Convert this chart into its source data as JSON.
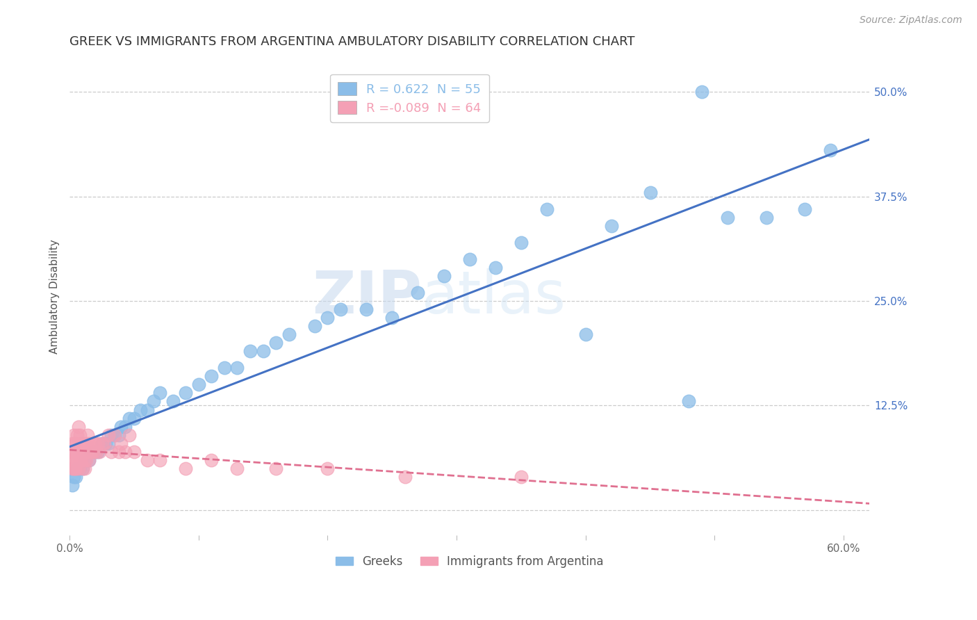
{
  "title": "GREEK VS IMMIGRANTS FROM ARGENTINA AMBULATORY DISABILITY CORRELATION CHART",
  "source": "Source: ZipAtlas.com",
  "ylabel": "Ambulatory Disability",
  "xlim": [
    0.0,
    0.62
  ],
  "ylim": [
    -0.03,
    0.54
  ],
  "xticks": [
    0.0,
    0.1,
    0.2,
    0.3,
    0.4,
    0.5,
    0.6
  ],
  "xticklabels": [
    "0.0%",
    "",
    "",
    "",
    "",
    "",
    "60.0%"
  ],
  "yticks_right": [
    0.0,
    0.125,
    0.25,
    0.375,
    0.5
  ],
  "ytick_right_labels": [
    "",
    "12.5%",
    "25.0%",
    "37.5%",
    "50.0%"
  ],
  "grid_color": "#cccccc",
  "background_color": "#ffffff",
  "greeks": {
    "name": "Greeks",
    "R": 0.622,
    "N": 55,
    "color": "#8bbde8",
    "line_color": "#4472c4",
    "line_style": "solid",
    "x": [
      0.002,
      0.003,
      0.005,
      0.006,
      0.008,
      0.01,
      0.012,
      0.015,
      0.018,
      0.02,
      0.022,
      0.025,
      0.028,
      0.03,
      0.032,
      0.035,
      0.038,
      0.04,
      0.043,
      0.046,
      0.05,
      0.055,
      0.06,
      0.065,
      0.07,
      0.08,
      0.09,
      0.1,
      0.11,
      0.12,
      0.13,
      0.14,
      0.15,
      0.16,
      0.17,
      0.19,
      0.2,
      0.21,
      0.23,
      0.25,
      0.27,
      0.29,
      0.31,
      0.33,
      0.35,
      0.37,
      0.4,
      0.42,
      0.45,
      0.48,
      0.49,
      0.51,
      0.54,
      0.57,
      0.59
    ],
    "y": [
      0.03,
      0.04,
      0.04,
      0.05,
      0.05,
      0.05,
      0.06,
      0.06,
      0.07,
      0.07,
      0.07,
      0.08,
      0.08,
      0.08,
      0.09,
      0.09,
      0.09,
      0.1,
      0.1,
      0.11,
      0.11,
      0.12,
      0.12,
      0.13,
      0.14,
      0.13,
      0.14,
      0.15,
      0.16,
      0.17,
      0.17,
      0.19,
      0.19,
      0.2,
      0.21,
      0.22,
      0.23,
      0.24,
      0.24,
      0.23,
      0.26,
      0.28,
      0.3,
      0.29,
      0.32,
      0.36,
      0.21,
      0.34,
      0.38,
      0.13,
      0.5,
      0.35,
      0.35,
      0.36,
      0.43
    ]
  },
  "argentina": {
    "name": "Immigrants from Argentina",
    "R": -0.089,
    "N": 64,
    "color": "#f4a0b5",
    "line_color": "#e07090",
    "line_style": "dashed",
    "x": [
      0.001,
      0.001,
      0.002,
      0.002,
      0.002,
      0.003,
      0.003,
      0.003,
      0.004,
      0.004,
      0.004,
      0.005,
      0.005,
      0.005,
      0.006,
      0.006,
      0.006,
      0.007,
      0.007,
      0.007,
      0.008,
      0.008,
      0.008,
      0.009,
      0.009,
      0.01,
      0.01,
      0.011,
      0.011,
      0.012,
      0.012,
      0.013,
      0.013,
      0.014,
      0.014,
      0.015,
      0.015,
      0.016,
      0.017,
      0.018,
      0.019,
      0.02,
      0.021,
      0.022,
      0.023,
      0.025,
      0.027,
      0.03,
      0.032,
      0.035,
      0.038,
      0.04,
      0.043,
      0.046,
      0.05,
      0.06,
      0.07,
      0.09,
      0.11,
      0.13,
      0.16,
      0.2,
      0.26,
      0.35
    ],
    "y": [
      0.06,
      0.07,
      0.05,
      0.06,
      0.08,
      0.05,
      0.07,
      0.09,
      0.05,
      0.06,
      0.08,
      0.05,
      0.07,
      0.08,
      0.06,
      0.07,
      0.09,
      0.05,
      0.07,
      0.1,
      0.06,
      0.07,
      0.09,
      0.06,
      0.08,
      0.05,
      0.07,
      0.06,
      0.08,
      0.05,
      0.07,
      0.06,
      0.08,
      0.07,
      0.09,
      0.06,
      0.08,
      0.07,
      0.07,
      0.08,
      0.07,
      0.08,
      0.07,
      0.08,
      0.07,
      0.08,
      0.08,
      0.09,
      0.07,
      0.09,
      0.07,
      0.08,
      0.07,
      0.09,
      0.07,
      0.06,
      0.06,
      0.05,
      0.06,
      0.05,
      0.05,
      0.05,
      0.04,
      0.04
    ]
  },
  "legend_upper": {
    "entries": [
      {
        "label_r": "R =",
        "label_val": " 0.622",
        "label_n": "  N = 55",
        "color": "#8bbde8"
      },
      {
        "label_r": "R =",
        "label_val": "-0.089",
        "label_n": "  N = 64",
        "color": "#f4a0b5"
      }
    ]
  },
  "watermark_text": "ZIP",
  "watermark_text2": "atlas",
  "title_fontsize": 13,
  "axis_label_fontsize": 11,
  "tick_fontsize": 11,
  "source_fontsize": 10
}
